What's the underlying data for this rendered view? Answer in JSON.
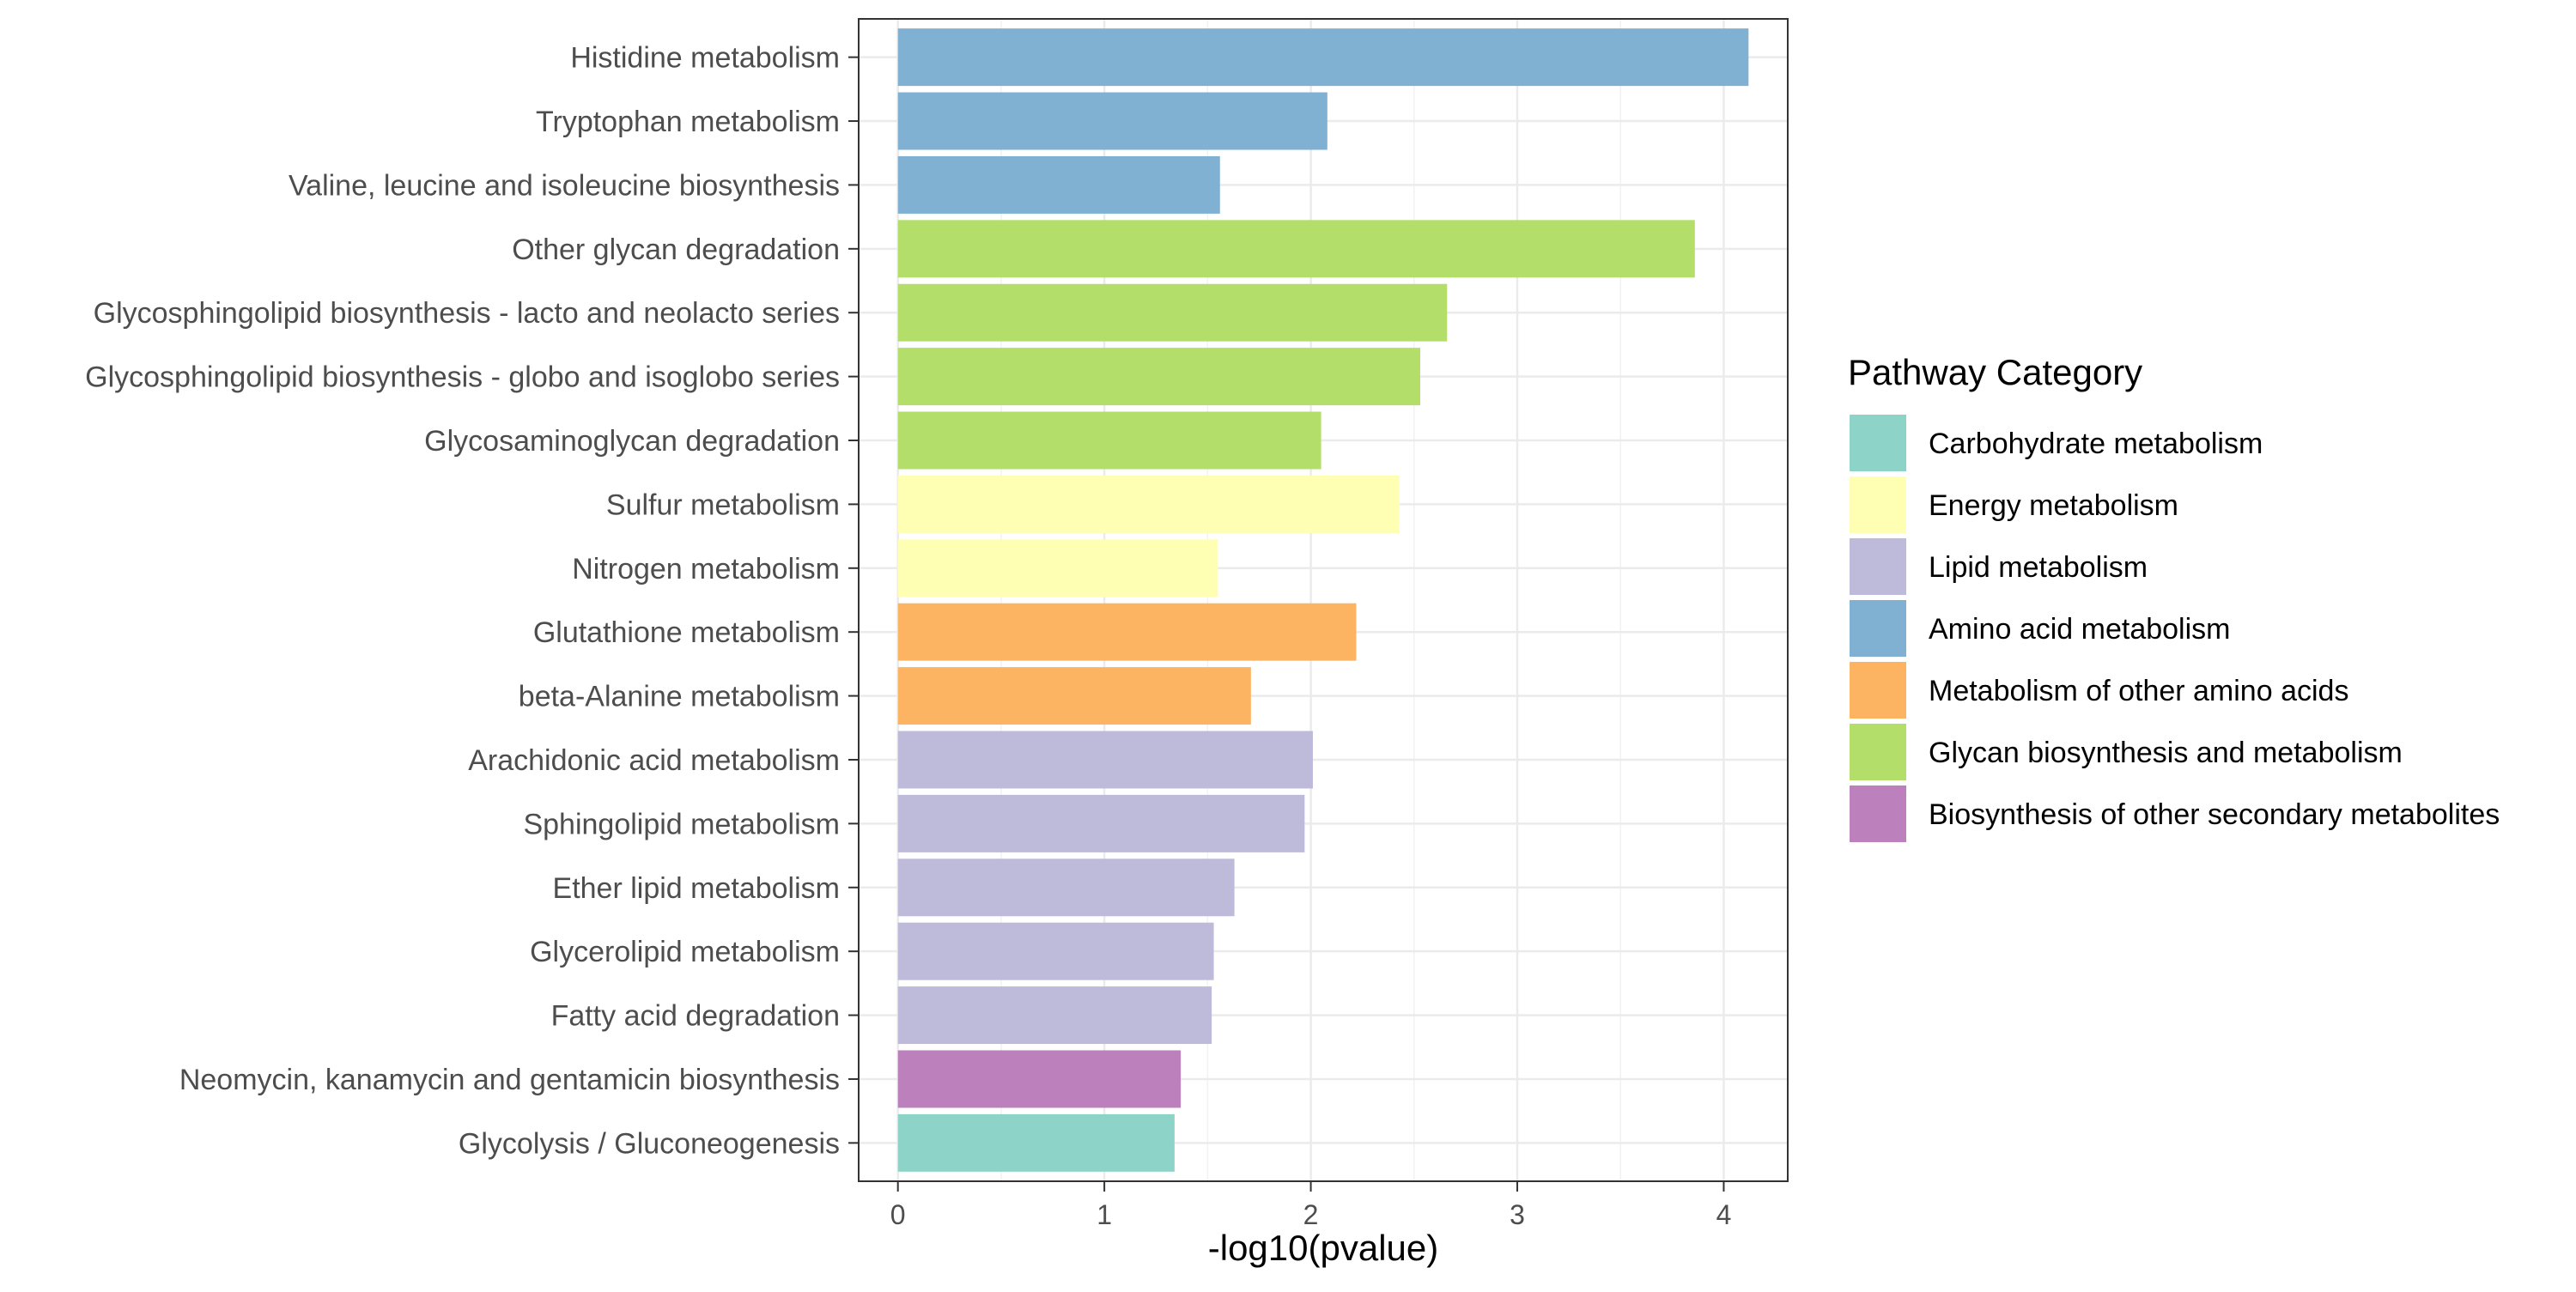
{
  "chart_data": {
    "type": "bar",
    "orientation": "horizontal",
    "title": "",
    "xlabel": "-log10(pvalue)",
    "ylabel": "",
    "xlim": [
      -0.19,
      4.31
    ],
    "x_ticks": [
      0,
      1,
      2,
      3,
      4
    ],
    "grid": true,
    "legend_placement": "right",
    "legend_title": "Pathway Category",
    "categories_legend": [
      {
        "name": "Carbohydrate metabolism",
        "color": "#8DD3C7"
      },
      {
        "name": "Energy metabolism",
        "color": "#FFFFB3"
      },
      {
        "name": "Lipid metabolism",
        "color": "#BEBADA"
      },
      {
        "name": "Amino acid metabolism",
        "color": "#80B1D3"
      },
      {
        "name": "Metabolism of other amino acids",
        "color": "#FDB462"
      },
      {
        "name": "Glycan biosynthesis and metabolism",
        "color": "#B3DE69"
      },
      {
        "name": "Biosynthesis of other secondary metabolites",
        "color": "#BC80BD"
      }
    ],
    "bars": [
      {
        "label": "Histidine metabolism",
        "value": 4.12,
        "category": "Amino acid metabolism"
      },
      {
        "label": "Tryptophan metabolism",
        "value": 2.08,
        "category": "Amino acid metabolism"
      },
      {
        "label": "Valine, leucine and isoleucine biosynthesis",
        "value": 1.56,
        "category": "Amino acid metabolism"
      },
      {
        "label": "Other glycan degradation",
        "value": 3.86,
        "category": "Glycan biosynthesis and metabolism"
      },
      {
        "label": "Glycosphingolipid biosynthesis - lacto and neolacto series",
        "value": 2.66,
        "category": "Glycan biosynthesis and metabolism"
      },
      {
        "label": "Glycosphingolipid biosynthesis - globo and isoglobo series",
        "value": 2.53,
        "category": "Glycan biosynthesis and metabolism"
      },
      {
        "label": "Glycosaminoglycan degradation",
        "value": 2.05,
        "category": "Glycan biosynthesis and metabolism"
      },
      {
        "label": "Sulfur metabolism",
        "value": 2.43,
        "category": "Energy metabolism"
      },
      {
        "label": "Nitrogen metabolism",
        "value": 1.55,
        "category": "Energy metabolism"
      },
      {
        "label": "Glutathione metabolism",
        "value": 2.22,
        "category": "Metabolism of other amino acids"
      },
      {
        "label": "beta-Alanine metabolism",
        "value": 1.71,
        "category": "Metabolism of other amino acids"
      },
      {
        "label": "Arachidonic acid metabolism",
        "value": 2.01,
        "category": "Lipid metabolism"
      },
      {
        "label": "Sphingolipid metabolism",
        "value": 1.97,
        "category": "Lipid metabolism"
      },
      {
        "label": "Ether lipid metabolism",
        "value": 1.63,
        "category": "Lipid metabolism"
      },
      {
        "label": "Glycerolipid metabolism",
        "value": 1.53,
        "category": "Lipid metabolism"
      },
      {
        "label": "Fatty acid degradation",
        "value": 1.52,
        "category": "Lipid metabolism"
      },
      {
        "label": "Neomycin, kanamycin and gentamicin biosynthesis",
        "value": 1.37,
        "category": "Biosynthesis of other secondary metabolites"
      },
      {
        "label": "Glycolysis / Gluconeogenesis",
        "value": 1.34,
        "category": "Carbohydrate metabolism"
      }
    ]
  }
}
